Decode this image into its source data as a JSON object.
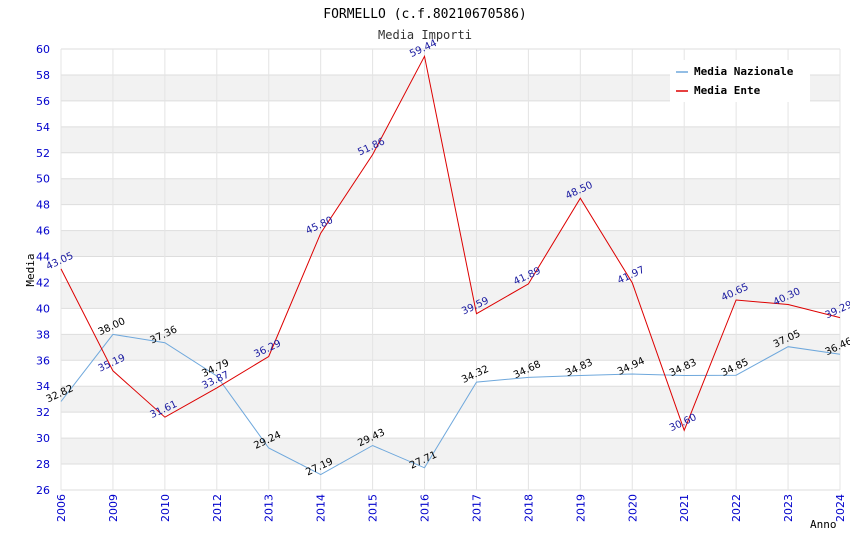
{
  "chart_data": {
    "type": "line",
    "title": "FORMELLO (c.f.80210670586)",
    "subtitle": "Media Importi",
    "xlabel": "Anno",
    "ylabel": "Media",
    "ylim": [
      26,
      60
    ],
    "ytick_step": 2,
    "grid": true,
    "legend_position": "top-right",
    "categories": [
      "2006",
      "2009",
      "2010",
      "2012",
      "2013",
      "2014",
      "2015",
      "2016",
      "2017",
      "2018",
      "2019",
      "2020",
      "2021",
      "2022",
      "2023",
      "2024"
    ],
    "series": [
      {
        "name": "Media Nazionale",
        "color": "#6fa8dc",
        "values": [
          32.82,
          38.0,
          37.36,
          34.79,
          29.24,
          27.19,
          29.43,
          27.71,
          34.32,
          34.68,
          34.83,
          34.94,
          34.83,
          34.85,
          37.05,
          36.46
        ],
        "labels": [
          "32.82",
          "38.00",
          "37.36",
          "34.79",
          "29.24",
          "27.19",
          "29.43",
          "27.71",
          "34.32",
          "34.68",
          "34.83",
          "34.94",
          "34.83",
          "34.85",
          "37.05",
          "36.46"
        ]
      },
      {
        "name": "Media Ente",
        "color": "#dd0000",
        "values": [
          43.05,
          35.19,
          31.61,
          33.87,
          36.29,
          45.8,
          51.86,
          59.44,
          39.59,
          41.89,
          48.5,
          41.97,
          30.6,
          40.65,
          40.3,
          39.29
        ],
        "labels": [
          "43.05",
          "35.19",
          "31.61",
          "33.87",
          "36.29",
          "45.80",
          "51.86",
          "59.44",
          "39.59",
          "41.89",
          "48.50",
          "41.97",
          "30.60",
          "40.65",
          "40.30",
          "39.29"
        ]
      }
    ]
  }
}
